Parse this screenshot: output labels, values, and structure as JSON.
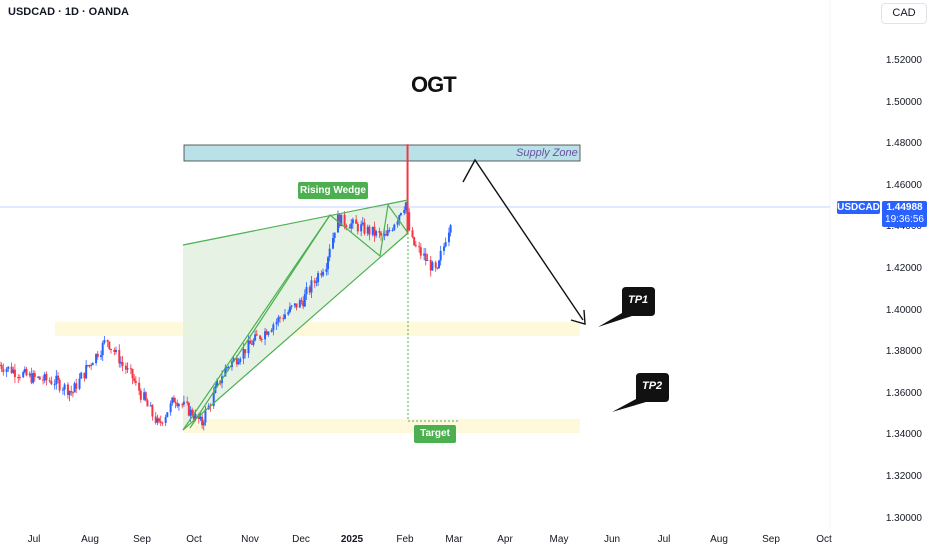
{
  "header": {
    "symbol_title": "USDCAD · 1D · OANDA",
    "currency_button": "CAD",
    "logo_text": "OGT"
  },
  "price_scale": {
    "ticks": [
      "1.52000",
      "1.50000",
      "1.48000",
      "1.46000",
      "1.44000",
      "1.42000",
      "1.40000",
      "1.38000",
      "1.36000",
      "1.34000",
      "1.32000",
      "1.30000"
    ]
  },
  "time_scale": {
    "ticks": [
      "Jul",
      "Aug",
      "Sep",
      "Oct",
      "Nov",
      "Dec",
      "2025",
      "Feb",
      "Mar",
      "Apr",
      "May",
      "Jun",
      "Jul",
      "Aug",
      "Sep",
      "Oct"
    ]
  },
  "current_price": {
    "symbol": "USDCAD",
    "value": "1.44988",
    "countdown": "19:36:56",
    "color": "#2962ff"
  },
  "annotations": {
    "supply_zone": "Supply Zone",
    "rising_wedge": "Rising Wedge",
    "target": "Target",
    "tp1": "TP1",
    "tp2": "TP2"
  },
  "colors": {
    "up_candle": "#2962ff",
    "down_candle": "#f23645",
    "wedge_line": "#4caf50",
    "wedge_fill": "#e3f2e1",
    "supply_zone_fill": "#b2dfe6",
    "support_zone_fill": "#fff8dc"
  },
  "chart_data": {
    "type": "candlestick",
    "title": "USDCAD · 1D · OANDA",
    "ylim": [
      1.29,
      1.53
    ],
    "x_range": [
      "2024-06-01",
      "2025-10-15"
    ],
    "series": [
      {
        "values": [
          {
            "date": "2024-06-01",
            "close": 1.374
          },
          {
            "date": "2024-06-20",
            "close": 1.368
          },
          {
            "date": "2024-07-05",
            "close": 1.366
          },
          {
            "date": "2024-07-15",
            "close": 1.361
          },
          {
            "date": "2024-07-25",
            "close": 1.374
          },
          {
            "date": "2024-08-05",
            "close": 1.386
          },
          {
            "date": "2024-08-12",
            "close": 1.377
          },
          {
            "date": "2024-08-20",
            "close": 1.368
          },
          {
            "date": "2024-09-05",
            "close": 1.345
          },
          {
            "date": "2024-09-15",
            "close": 1.358
          },
          {
            "date": "2024-09-25",
            "close": 1.351
          },
          {
            "date": "2024-10-01",
            "close": 1.346
          },
          {
            "date": "2024-10-15",
            "close": 1.372
          },
          {
            "date": "2024-11-01",
            "close": 1.385
          },
          {
            "date": "2024-11-15",
            "close": 1.395
          },
          {
            "date": "2024-12-01",
            "close": 1.405
          },
          {
            "date": "2024-12-15",
            "close": 1.423
          },
          {
            "date": "2024-12-22",
            "close": 1.444
          },
          {
            "date": "2025-01-05",
            "close": 1.44
          },
          {
            "date": "2025-01-20",
            "close": 1.435
          },
          {
            "date": "2025-02-01",
            "close": 1.452
          },
          {
            "date": "2025-02-05",
            "close": 1.433
          },
          {
            "date": "2025-02-20",
            "close": 1.418
          },
          {
            "date": "2025-03-01",
            "close": 1.446
          }
        ]
      }
    ],
    "supply_zone": [
      1.472,
      1.479
    ],
    "support_zones": [
      [
        1.388,
        1.394
      ],
      [
        1.342,
        1.347
      ]
    ],
    "projection": "decline from supply zone toward TP1 near 1.39 and TP2 near 1.34"
  }
}
